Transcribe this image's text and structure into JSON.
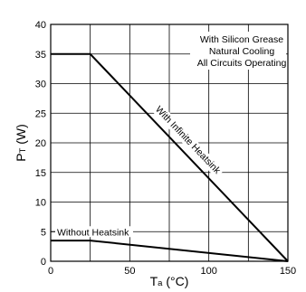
{
  "chart_data": {
    "type": "line",
    "xlabel": {
      "main": "T",
      "sub": "a",
      "unit": " (°C)"
    },
    "ylabel": {
      "main": "P",
      "sub": "T",
      "unit": " (W)"
    },
    "xlim": [
      0,
      150
    ],
    "ylim": [
      0,
      40
    ],
    "xticks": [
      0,
      50,
      100,
      150
    ],
    "yticks": [
      0,
      5,
      10,
      15,
      20,
      25,
      30,
      35,
      40
    ],
    "grid": true,
    "notes": [
      "With Silicon Grease",
      "Natural Cooling",
      "All Circuits Operating"
    ],
    "series": [
      {
        "name": "With Infinite Heatsink",
        "x": [
          0,
          25,
          150
        ],
        "y": [
          35,
          35,
          0
        ]
      },
      {
        "name": "Without Heatsink",
        "x": [
          0,
          25,
          150
        ],
        "y": [
          3.5,
          3.5,
          0
        ]
      }
    ]
  }
}
